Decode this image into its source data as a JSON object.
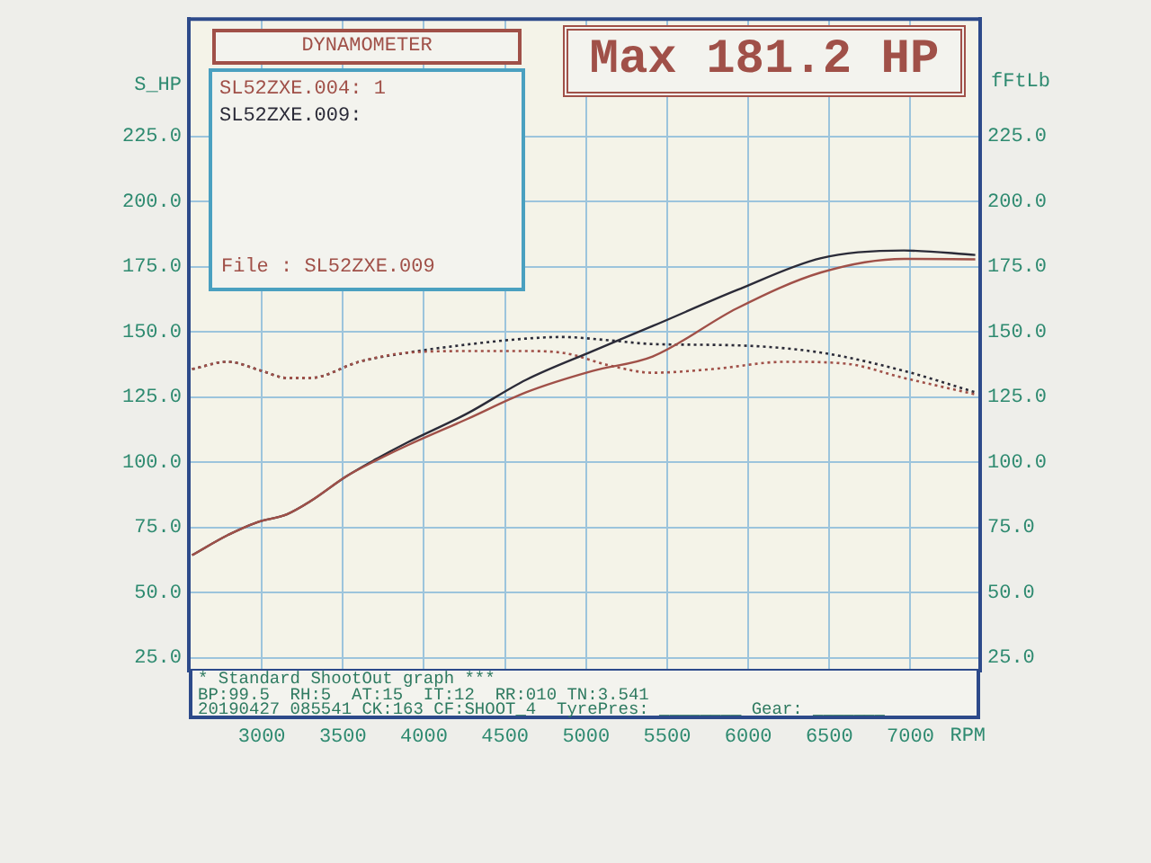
{
  "chart_data": {
    "type": "line",
    "title": "DYNAMOMETER",
    "xlabel": "RPM",
    "ylabel": "S_HP",
    "y2label": "fFtLb",
    "annotations": [
      "File    : SL52ZXE.009",
      "Max 181.2 HP",
      "* Standard ShootOut graph ***",
      "BP:99.5  RH:5  AT:15  IT:12  RR:010 TN:3.541",
      "20190427 085541 CK:163 CF:SHOOT_4  TyrePres: ________ Gear: _______"
    ],
    "xlim": [
      2550,
      7430
    ],
    "xticks": [
      3000,
      3500,
      4000,
      4500,
      5000,
      5500,
      6000,
      6500,
      7000
    ],
    "ylim": [
      20,
      270
    ],
    "yticks": [
      {
        "value": 25,
        "label": "25.0"
      },
      {
        "value": 50,
        "label": "50.0"
      },
      {
        "value": 75,
        "label": "75.0"
      },
      {
        "value": 100,
        "label": "100.0"
      },
      {
        "value": 125,
        "label": "125.0"
      },
      {
        "value": 150,
        "label": "150.0"
      },
      {
        "value": 175,
        "label": "175.0"
      },
      {
        "value": 200,
        "label": "200.0"
      },
      {
        "value": 225,
        "label": "225.0"
      }
    ],
    "y2lim": [
      20,
      270
    ],
    "y2ticks": [
      {
        "value": 25,
        "label": "25.0"
      },
      {
        "value": 50,
        "label": "50.0"
      },
      {
        "value": 75,
        "label": "75.0"
      },
      {
        "value": 100,
        "label": "100.0"
      },
      {
        "value": 125,
        "label": "125.0"
      },
      {
        "value": 150,
        "label": "150.0"
      },
      {
        "value": 175,
        "label": "175.0"
      },
      {
        "value": 200,
        "label": "200.0"
      },
      {
        "value": 225,
        "label": "225.0"
      }
    ],
    "grid": true,
    "legend": "top left",
    "series": [
      {
        "name": "SL52ZXE.004: 1",
        "color": "#a05048",
        "line_style": "solid",
        "x": [
          2570,
          2790,
          2970,
          3155,
          3300,
          3520,
          3700,
          3900,
          4265,
          4630,
          5040,
          5410,
          5930,
          6450,
          6960,
          7400
        ],
        "values": [
          64.3,
          72,
          76.9,
          80,
          85,
          94.5,
          100.5,
          106.5,
          116.5,
          126.8,
          135,
          140.5,
          159,
          172.8,
          178,
          177.8
        ]
      },
      {
        "name": "SL52ZXE.009:",
        "color": "#2b2b38",
        "line_style": "solid",
        "x": [
          2570,
          2790,
          2970,
          3155,
          3300,
          3520,
          3700,
          3900,
          4265,
          4630,
          5040,
          5410,
          5930,
          6450,
          6960,
          7400
        ],
        "values": [
          64.3,
          72,
          76.9,
          80,
          85,
          94.5,
          101,
          107.6,
          118.6,
          131.6,
          142.6,
          152.2,
          166,
          178.3,
          181.2,
          179.5
        ]
      },
      {
        "color": "#a05048",
        "line_style": "dotted",
        "x": [
          2570,
          2790,
          3000,
          3155,
          3300,
          3600,
          3900,
          4250,
          4630,
          4850,
          5150,
          5410,
          5780,
          6230,
          6600,
          6960,
          7400
        ],
        "values": [
          135.7,
          138.5,
          135,
          132.3,
          132.3,
          138.5,
          142,
          142.6,
          142.6,
          142,
          137,
          134.3,
          135.7,
          138.5,
          137.8,
          132.3,
          126
        ]
      },
      {
        "color": "#2b2b38",
        "line_style": "dotted",
        "x": [
          2570,
          2790,
          3000,
          3155,
          3300,
          3600,
          3900,
          4250,
          4630,
          4850,
          5150,
          5410,
          5930,
          6450,
          6960,
          7400
        ],
        "values": [
          135.7,
          138.5,
          135,
          132.3,
          132.3,
          138.5,
          142,
          145,
          147.4,
          148,
          146.7,
          145.3,
          144.8,
          142,
          135,
          126.8
        ]
      }
    ]
  }
}
